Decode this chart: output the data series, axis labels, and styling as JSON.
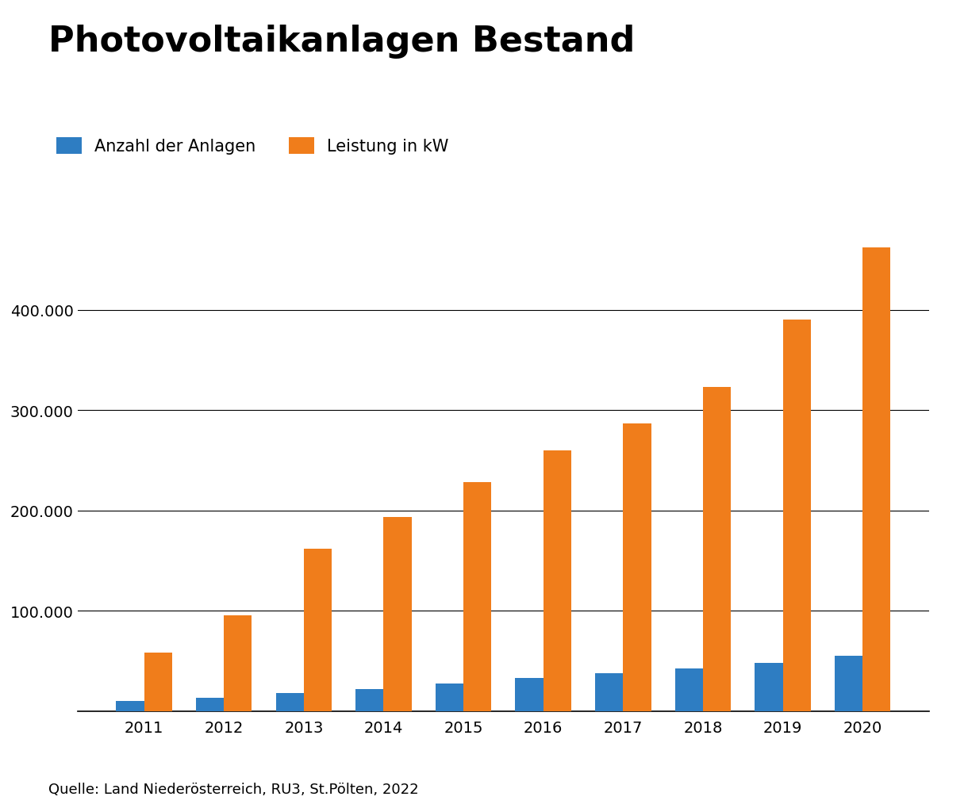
{
  "title": "Photovoltaikanlagen Bestand",
  "years": [
    2011,
    2012,
    2013,
    2014,
    2015,
    2016,
    2017,
    2018,
    2019,
    2020
  ],
  "anzahl": [
    10000,
    13000,
    18000,
    22000,
    27000,
    33000,
    38000,
    42000,
    48000,
    55000
  ],
  "leistung": [
    58000,
    95000,
    162000,
    193000,
    228000,
    260000,
    287000,
    323000,
    390000,
    462000
  ],
  "bar_color_anzahl": "#2E7DC2",
  "bar_color_leistung": "#F07D1B",
  "legend_anzahl": "Anzahl der Anlagen",
  "legend_leistung": "Leistung in kW",
  "yticks": [
    100000,
    200000,
    300000,
    400000
  ],
  "ymax": 500000,
  "source_text": "Quelle: Land Niederösterreich, RU3, St.Pölten, 2022",
  "background_color": "#FFFFFF",
  "title_fontsize": 32,
  "legend_fontsize": 15,
  "tick_fontsize": 14,
  "source_fontsize": 13,
  "bar_width": 0.35
}
